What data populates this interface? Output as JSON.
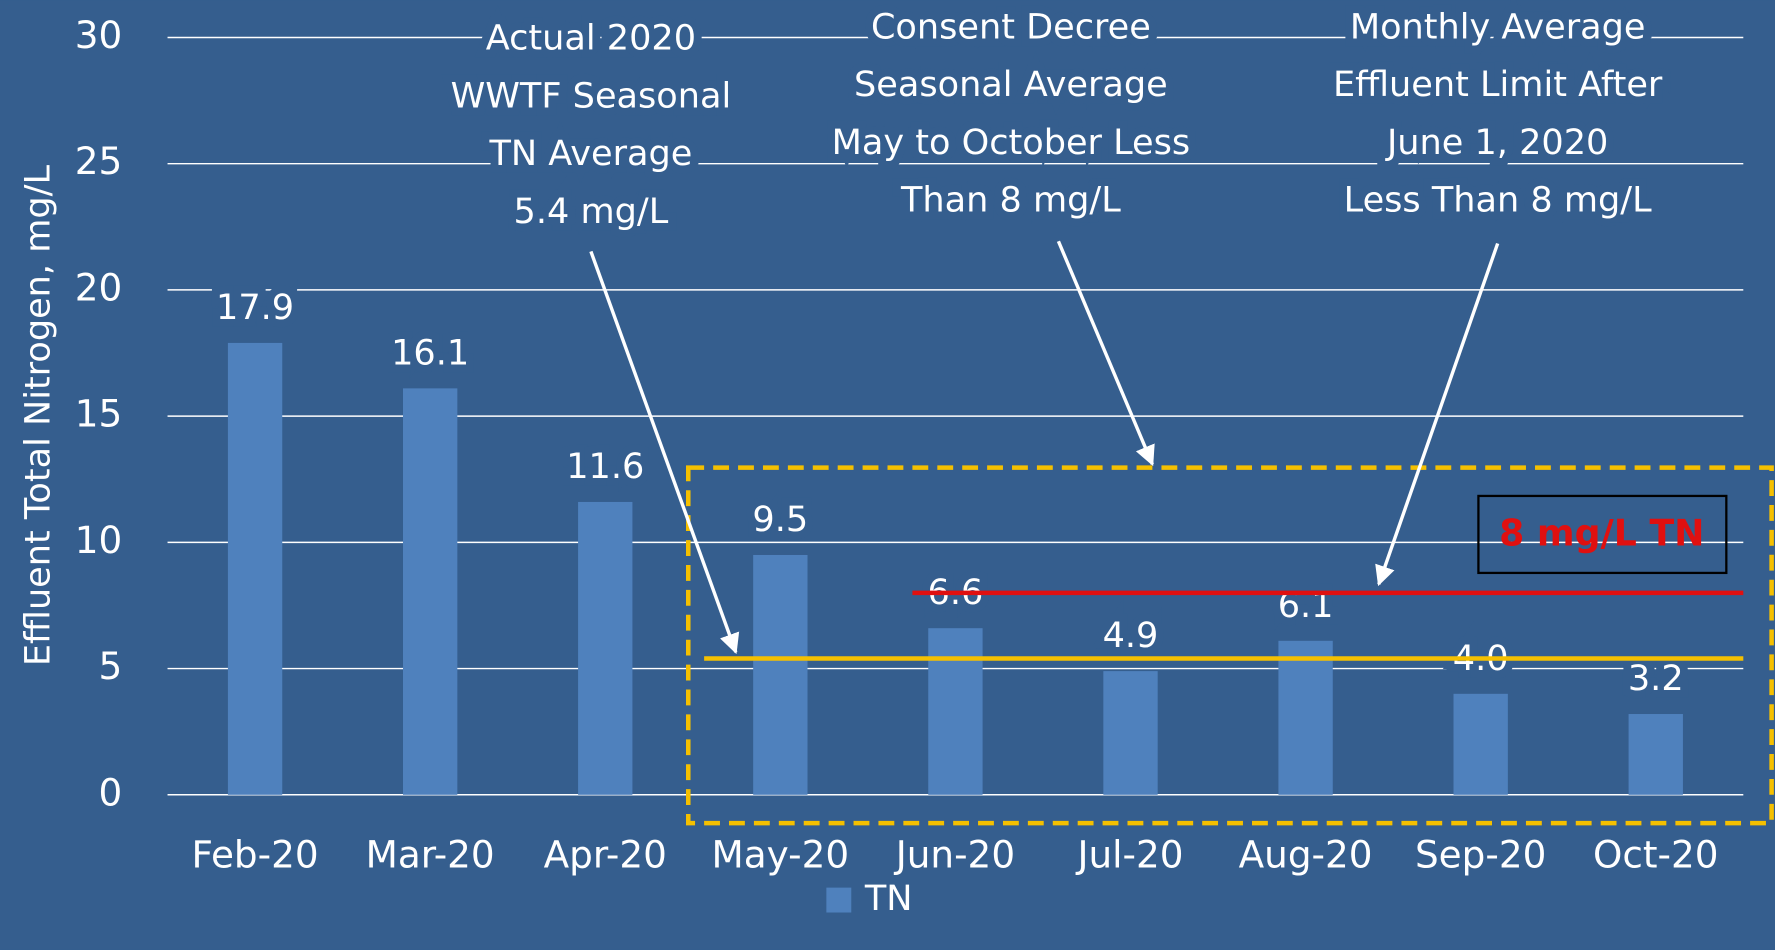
{
  "chart_data": {
    "type": "bar",
    "categories": [
      "Feb-20",
      "Mar-20",
      "Apr-20",
      "May-20",
      "Jun-20",
      "Jul-20",
      "Aug-20",
      "Sep-20",
      "Oct-20"
    ],
    "values": [
      17.9,
      16.1,
      11.6,
      9.5,
      6.6,
      4.9,
      6.1,
      4.0,
      3.2
    ],
    "value_labels": [
      "17.9",
      "16.1",
      "11.6",
      "9.5",
      "6.6",
      "4.9",
      "6.1",
      "4.0",
      "3.2"
    ],
    "color": "#4f81bd",
    "legend": "TN",
    "y_label": "Effluent Total Nitrogen, mg/L",
    "ylim": [
      0,
      30
    ],
    "yticks": [
      0,
      5,
      10,
      15,
      20,
      25,
      30
    ],
    "grid": true,
    "reference_lines": [
      {
        "value": 5.4,
        "color": "#f5c000"
      },
      {
        "value": 8,
        "color": "#e01010"
      }
    ],
    "box_label": "8 mg/L TN",
    "annotations": [
      {
        "lines": [
          "Actual 2020",
          "WWTF Seasonal",
          "TN Average",
          "5.4 mg/L"
        ]
      },
      {
        "lines": [
          "Consent Decree",
          "Seasonal Average",
          "May to October Less",
          "Than 8 mg/L"
        ]
      },
      {
        "lines": [
          "Monthly Average",
          "Effluent Limit After",
          "June 1, 2020",
          "Less Than 8 mg/L"
        ]
      }
    ]
  }
}
